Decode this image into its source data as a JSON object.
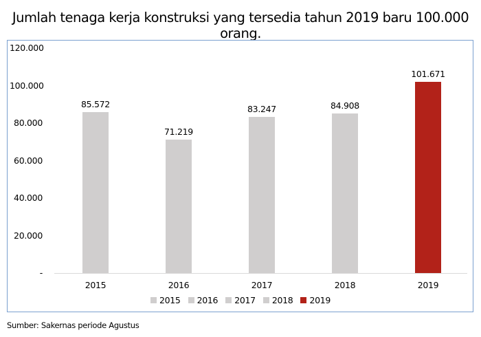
{
  "title": "Jumlah tenaga kerja konstruksi yang tersedia tahun 2019 baru 100.000 orang.",
  "source": "Sumber: Sakernas periode Agustus",
  "colors": {
    "default_bar": "#d0cece",
    "highlight_bar": "#b22219",
    "frame": "#7aa0cf",
    "axis": "#d9d9d9"
  },
  "y_ticks": [
    "120.000",
    "100.000",
    "80.000",
    "60.000",
    "40.000",
    "20.000",
    "-"
  ],
  "bars": [
    {
      "year": "2015",
      "value": 85572,
      "label": "85.572",
      "color": "#d0cece"
    },
    {
      "year": "2016",
      "value": 71219,
      "label": "71.219",
      "color": "#d0cece"
    },
    {
      "year": "2017",
      "value": 83247,
      "label": "83.247",
      "color": "#d0cece"
    },
    {
      "year": "2018",
      "value": 84908,
      "label": "84.908",
      "color": "#d0cece"
    },
    {
      "year": "2019",
      "value": 101671,
      "label": "101.671",
      "color": "#b22219"
    }
  ],
  "legend": [
    {
      "label": "2015",
      "color": "#d0cece"
    },
    {
      "label": "2016",
      "color": "#d0cece"
    },
    {
      "label": "2017",
      "color": "#d0cece"
    },
    {
      "label": "2018",
      "color": "#d0cece"
    },
    {
      "label": "2019",
      "color": "#b22219"
    }
  ],
  "chart_data": {
    "type": "bar",
    "title": "Jumlah tenaga kerja konstruksi yang tersedia tahun 2019 baru 100.000 orang.",
    "categories": [
      "2015",
      "2016",
      "2017",
      "2018",
      "2019"
    ],
    "values": [
      85572,
      71219,
      83247,
      84908,
      101671
    ],
    "data_labels": [
      "85.572",
      "71.219",
      "83.247",
      "84.908",
      "101.671"
    ],
    "xlabel": "",
    "ylabel": "",
    "ylim": [
      0,
      120000
    ],
    "y_tick_labels": [
      "-",
      "20.000",
      "40.000",
      "60.000",
      "80.000",
      "100.000",
      "120.000"
    ],
    "grid": false,
    "legend": {
      "position": "bottom",
      "entries": [
        "2015",
        "2016",
        "2017",
        "2018",
        "2019"
      ]
    },
    "highlight": {
      "category": "2019",
      "color": "#b22219"
    },
    "source": "Sumber: Sakernas periode Agustus"
  }
}
